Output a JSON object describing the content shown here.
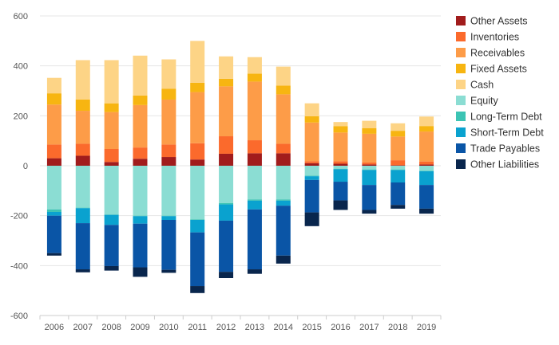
{
  "chart_data": {
    "type": "bar",
    "stacked": true,
    "title": "",
    "xlabel": "",
    "ylabel": "",
    "ylim": [
      -600,
      600
    ],
    "yticks": [
      -600,
      -400,
      -200,
      0,
      200,
      400,
      600
    ],
    "grid": true,
    "legend_position": "right",
    "categories": [
      "2006",
      "2007",
      "2008",
      "2009",
      "2010",
      "2011",
      "2012",
      "2013",
      "2014",
      "2015",
      "2016",
      "2017",
      "2018",
      "2019"
    ],
    "series": [
      {
        "name": "Other Assets",
        "color": "#a11c1c",
        "values": [
          30,
          40,
          15,
          28,
          35,
          25,
          48,
          50,
          50,
          10,
          8,
          5,
          2,
          5
        ]
      },
      {
        "name": "Inventories",
        "color": "#fb6a2c",
        "values": [
          55,
          48,
          52,
          45,
          50,
          65,
          70,
          52,
          38,
          8,
          10,
          8,
          20,
          12
        ]
      },
      {
        "name": "Receivables",
        "color": "#fd9c48",
        "values": [
          160,
          132,
          148,
          170,
          180,
          205,
          200,
          235,
          198,
          155,
          115,
          115,
          95,
          120
        ]
      },
      {
        "name": "Fixed Assets",
        "color": "#f7b511",
        "values": [
          45,
          45,
          35,
          38,
          43,
          37,
          30,
          32,
          35,
          25,
          25,
          22,
          23,
          22
        ]
      },
      {
        "name": "Cash",
        "color": "#fdd486",
        "values": [
          62,
          158,
          173,
          160,
          118,
          168,
          90,
          66,
          76,
          52,
          17,
          30,
          30,
          38
        ]
      },
      {
        "name": "Equity",
        "color": "#8bddd3",
        "values": [
          -175,
          -168,
          -195,
          -200,
          -200,
          -215,
          -150,
          -135,
          -135,
          -40,
          -12,
          -15,
          -15,
          -20
        ]
      },
      {
        "name": "Long-Term Debt",
        "color": "#3cc4b4",
        "values": [
          -10,
          -2,
          -2,
          -2,
          -2,
          -2,
          -5,
          -5,
          -5,
          -2,
          -2,
          -2,
          -2,
          -2
        ]
      },
      {
        "name": "Short-Term Debt",
        "color": "#0aa2cf",
        "values": [
          -15,
          -60,
          -40,
          -30,
          -15,
          -50,
          -65,
          -35,
          -20,
          -15,
          -50,
          -60,
          -50,
          -55
        ]
      },
      {
        "name": "Trade Payables",
        "color": "#0a55a6",
        "values": [
          -150,
          -185,
          -165,
          -175,
          -200,
          -215,
          -205,
          -240,
          -200,
          -130,
          -75,
          -100,
          -90,
          -95
        ]
      },
      {
        "name": "Other Liabilities",
        "color": "#09264d",
        "values": [
          -10,
          -12,
          -18,
          -38,
          -12,
          -28,
          -25,
          -18,
          -32,
          -55,
          -38,
          -15,
          -15,
          -20
        ]
      }
    ]
  }
}
